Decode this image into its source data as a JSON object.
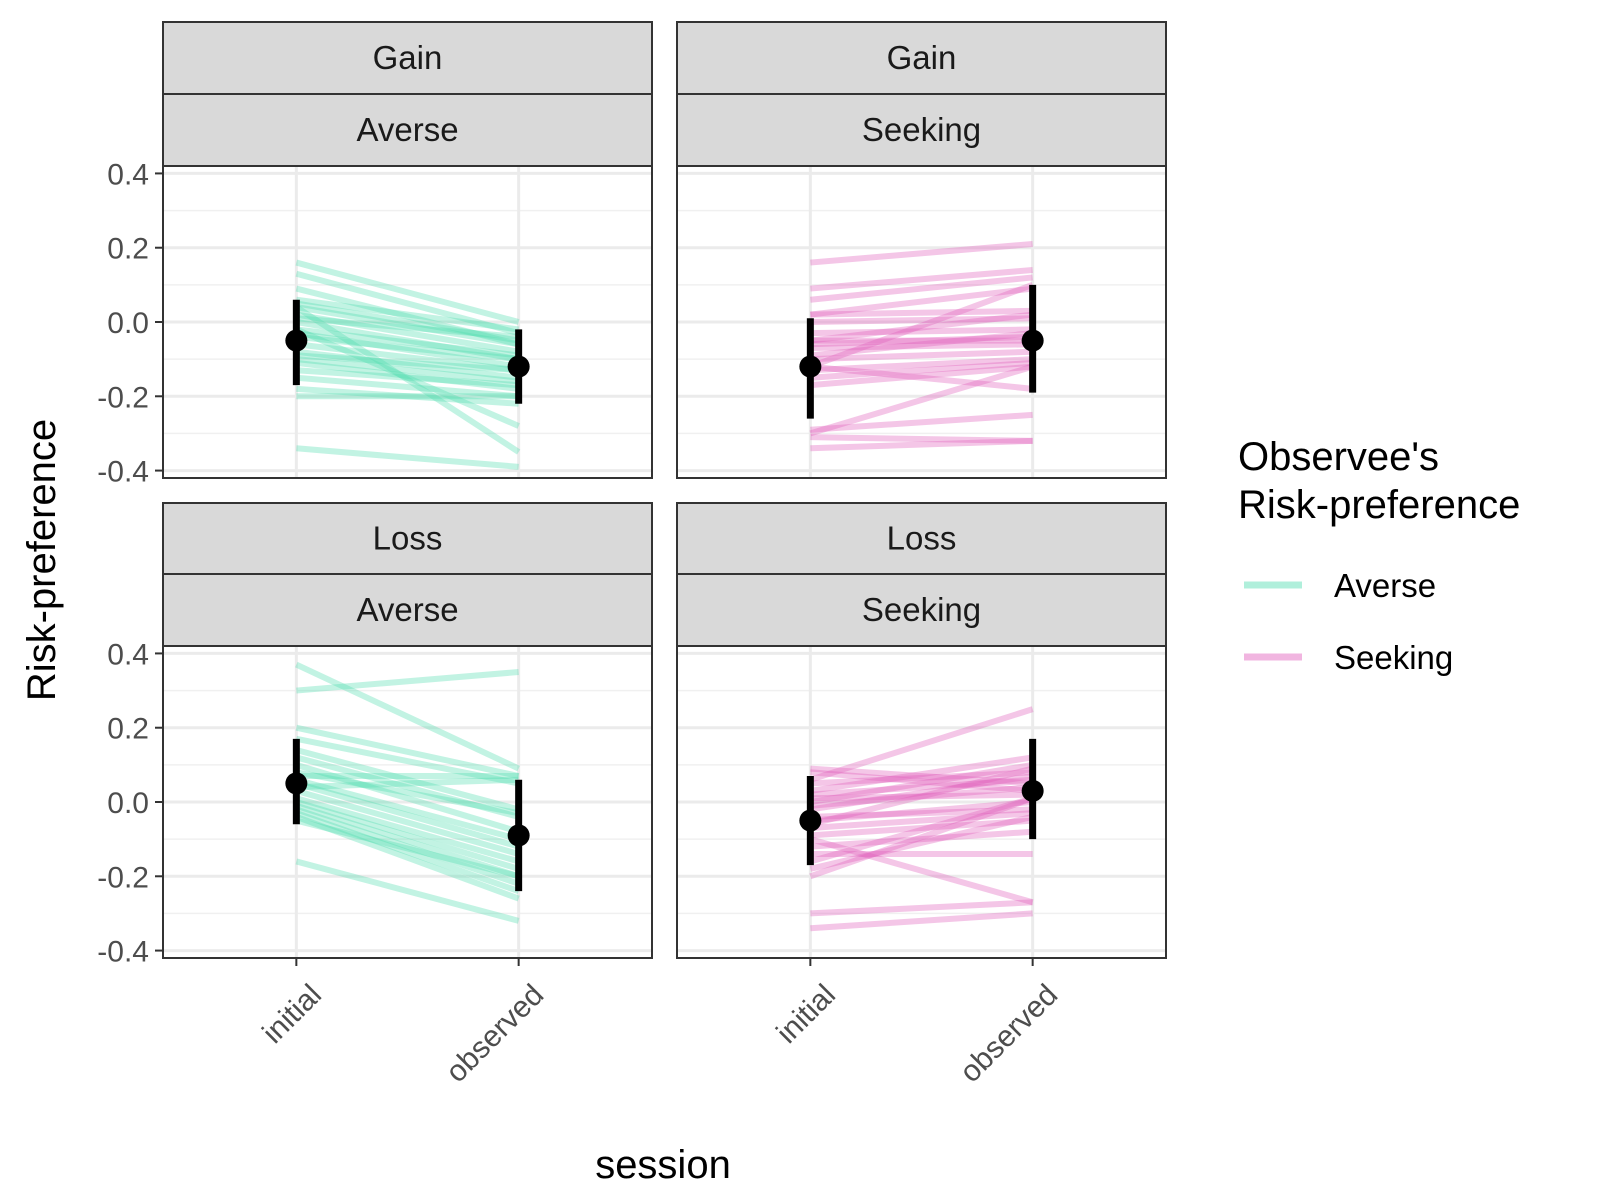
{
  "chart_data": {
    "type": "line",
    "facet_rows": [
      "Gain",
      "Loss"
    ],
    "facet_cols": [
      "Averse",
      "Seeking"
    ],
    "x_categories": [
      "initial",
      "observed"
    ],
    "xlabel": "session",
    "ylabel": "Risk-preference",
    "ylim": [
      -0.42,
      0.42
    ],
    "y_ticks": [
      "-0.4",
      "-0.2",
      "0.0",
      "0.2",
      "0.4"
    ],
    "grid": true,
    "legend": {
      "title_lines": [
        "Observee's",
        "Risk-preference"
      ],
      "position": "right",
      "items": [
        {
          "label": "Averse",
          "color": "#4fdcb0"
        },
        {
          "label": "Seeking",
          "color": "#e05bbb"
        }
      ]
    },
    "colors": {
      "Averse": "#4fdcb0",
      "Seeking": "#e05bbb",
      "summary": "#000000"
    },
    "panels": [
      {
        "top": "Gain",
        "bottom": "Averse",
        "series_color": "Averse",
        "lines": [
          [
            0.16,
            0.0
          ],
          [
            0.13,
            -0.03
          ],
          [
            0.09,
            -0.06
          ],
          [
            0.06,
            -0.02
          ],
          [
            0.05,
            -0.05
          ],
          [
            0.04,
            -0.06
          ],
          [
            0.02,
            -0.08
          ],
          [
            0.01,
            -0.04
          ],
          [
            0.0,
            -0.1
          ],
          [
            -0.02,
            -0.09
          ],
          [
            -0.03,
            -0.12
          ],
          [
            -0.04,
            -0.1
          ],
          [
            -0.06,
            -0.13
          ],
          [
            -0.08,
            -0.15
          ],
          [
            -0.09,
            -0.13
          ],
          [
            -0.1,
            -0.16
          ],
          [
            -0.11,
            -0.18
          ],
          [
            -0.13,
            -0.17
          ],
          [
            -0.15,
            -0.2
          ],
          [
            -0.18,
            -0.22
          ],
          [
            -0.2,
            -0.2
          ],
          [
            -0.02,
            -0.28
          ],
          [
            0.04,
            -0.35
          ],
          [
            -0.34,
            -0.39
          ]
        ],
        "summary": {
          "initial": {
            "mean": -0.05,
            "lo": -0.17,
            "hi": 0.06
          },
          "observed": {
            "mean": -0.12,
            "lo": -0.22,
            "hi": -0.02
          }
        }
      },
      {
        "top": "Gain",
        "bottom": "Seeking",
        "series_color": "Seeking",
        "lines": [
          [
            0.16,
            0.21
          ],
          [
            0.09,
            0.14
          ],
          [
            0.06,
            0.12
          ],
          [
            0.02,
            0.09
          ],
          [
            0.02,
            0.03
          ],
          [
            0.0,
            0.01
          ],
          [
            -0.03,
            -0.02
          ],
          [
            -0.05,
            0.02
          ],
          [
            -0.05,
            -0.05
          ],
          [
            -0.06,
            -0.04
          ],
          [
            -0.07,
            -0.06
          ],
          [
            -0.09,
            -0.03
          ],
          [
            -0.1,
            -0.08
          ],
          [
            -0.12,
            -0.18
          ],
          [
            -0.13,
            -0.1
          ],
          [
            -0.15,
            -0.11
          ],
          [
            -0.17,
            -0.12
          ],
          [
            -0.12,
            0.1
          ],
          [
            -0.3,
            -0.12
          ],
          [
            -0.29,
            -0.25
          ],
          [
            -0.31,
            -0.32
          ],
          [
            -0.34,
            -0.32
          ]
        ],
        "summary": {
          "initial": {
            "mean": -0.12,
            "lo": -0.26,
            "hi": 0.01
          },
          "observed": {
            "mean": -0.05,
            "lo": -0.19,
            "hi": 0.1
          }
        }
      },
      {
        "top": "Loss",
        "bottom": "Averse",
        "series_color": "Averse",
        "lines": [
          [
            0.37,
            0.09
          ],
          [
            0.3,
            0.35
          ],
          [
            0.2,
            0.07
          ],
          [
            0.17,
            0.05
          ],
          [
            0.14,
            -0.02
          ],
          [
            0.12,
            -0.04
          ],
          [
            0.1,
            -0.08
          ],
          [
            0.08,
            -0.03
          ],
          [
            0.07,
            0.07
          ],
          [
            0.06,
            -0.1
          ],
          [
            0.05,
            -0.12
          ],
          [
            0.04,
            0.06
          ],
          [
            0.03,
            -0.14
          ],
          [
            0.01,
            -0.16
          ],
          [
            0.0,
            -0.18
          ],
          [
            -0.01,
            -0.2
          ],
          [
            -0.02,
            -0.22
          ],
          [
            -0.03,
            -0.24
          ],
          [
            -0.04,
            -0.26
          ],
          [
            -0.05,
            -0.2
          ],
          [
            -0.16,
            -0.32
          ]
        ],
        "summary": {
          "initial": {
            "mean": 0.05,
            "lo": -0.06,
            "hi": 0.17
          },
          "observed": {
            "mean": -0.09,
            "lo": -0.24,
            "hi": 0.06
          }
        }
      },
      {
        "top": "Loss",
        "bottom": "Seeking",
        "series_color": "Seeking",
        "lines": [
          [
            0.09,
            0.05
          ],
          [
            0.08,
            0.03
          ],
          [
            0.06,
            0.25
          ],
          [
            0.05,
            0.08
          ],
          [
            0.03,
            0.12
          ],
          [
            0.02,
            0.06
          ],
          [
            0.01,
            0.02
          ],
          [
            0.0,
            0.1
          ],
          [
            -0.01,
            0.04
          ],
          [
            -0.02,
            0.07
          ],
          [
            -0.04,
            -0.02
          ],
          [
            -0.05,
            0.0
          ],
          [
            -0.06,
            0.09
          ],
          [
            -0.07,
            -0.03
          ],
          [
            -0.09,
            -0.05
          ],
          [
            -0.1,
            -0.27
          ],
          [
            -0.12,
            -0.08
          ],
          [
            -0.14,
            -0.14
          ],
          [
            -0.16,
            0.01
          ],
          [
            -0.18,
            -0.04
          ],
          [
            -0.2,
            0.01
          ],
          [
            -0.3,
            -0.27
          ],
          [
            -0.34,
            -0.3
          ]
        ],
        "summary": {
          "initial": {
            "mean": -0.05,
            "lo": -0.17,
            "hi": 0.07
          },
          "observed": {
            "mean": 0.03,
            "lo": -0.1,
            "hi": 0.17
          }
        }
      }
    ]
  }
}
